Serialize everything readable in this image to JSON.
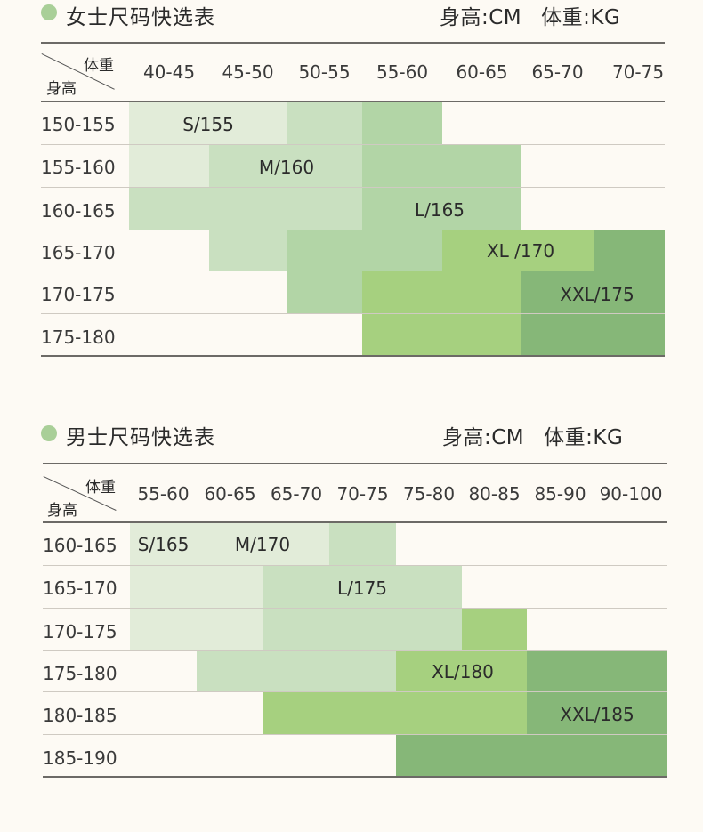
{
  "colors": {
    "c1": "#e2ecd9",
    "c2": "#c9e0c0",
    "c3": "#b2d5a6",
    "c4": "#a6d07f",
    "c5": "#86b778",
    "dot": "#a9cf98"
  },
  "women": {
    "title": "女士尺码快选表",
    "units_height": "身高:CM",
    "units_weight": "体重:KG",
    "corner_weight": "体重",
    "corner_height": "身高",
    "columns": [
      "40-45",
      "45-50",
      "50-55",
      "55-60",
      "60-65",
      "65-70",
      "70-75"
    ],
    "rows": [
      "150-155",
      "155-160",
      "160-165",
      "165-170",
      "170-175",
      "175-180"
    ],
    "labels": [
      "S/155",
      "M/160",
      "L/165",
      "XL /170",
      "XXL/175"
    ]
  },
  "men": {
    "title": "男士尺码快选表",
    "units_height": "身高:CM",
    "units_weight": "体重:KG",
    "corner_weight": "体重",
    "corner_height": "身高",
    "columns": [
      "55-60",
      "60-65",
      "65-70",
      "70-75",
      "75-80",
      "80-85",
      "85-90",
      "90-100"
    ],
    "rows": [
      "160-165",
      "165-170",
      "170-175",
      "175-180",
      "180-185",
      "185-190"
    ],
    "labels": [
      "S/165",
      "M/170",
      "L/175",
      "XL/180",
      "XXL/185"
    ]
  }
}
